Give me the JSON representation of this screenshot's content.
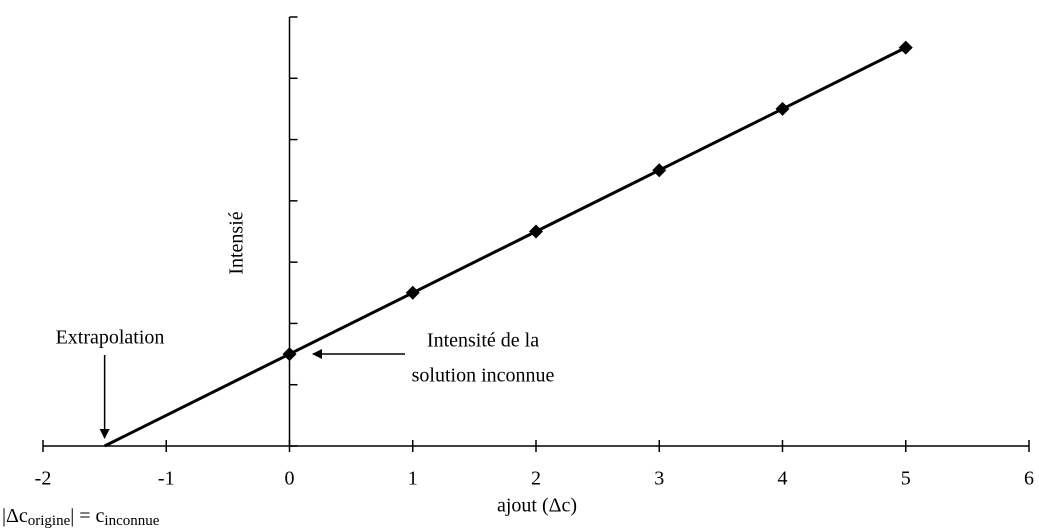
{
  "chart_data": {
    "type": "line",
    "x_label": "ajout (Δc)",
    "y_label": "Intensié",
    "x": [
      0,
      1,
      2,
      3,
      4,
      5
    ],
    "series": [
      {
        "name": null,
        "color": "#000000",
        "values": [
          1.5,
          2.5,
          3.5,
          4.5,
          5.5,
          6.5
        ]
      }
    ],
    "xlim": [
      -2,
      6
    ],
    "xticks": [
      -2,
      -1,
      0,
      1,
      2,
      3,
      4,
      5,
      6
    ],
    "ylim": [
      0,
      7
    ],
    "yticks": [
      0,
      1,
      2,
      3,
      4,
      5,
      6,
      7
    ],
    "annotations": {
      "extrapolation": "Extrapolation",
      "unknown": [
        "Intensité de la",
        "solution inconnue"
      ],
      "note": [
        "|Δc",
        "origine",
        "| = c",
        "inconnue"
      ]
    }
  }
}
